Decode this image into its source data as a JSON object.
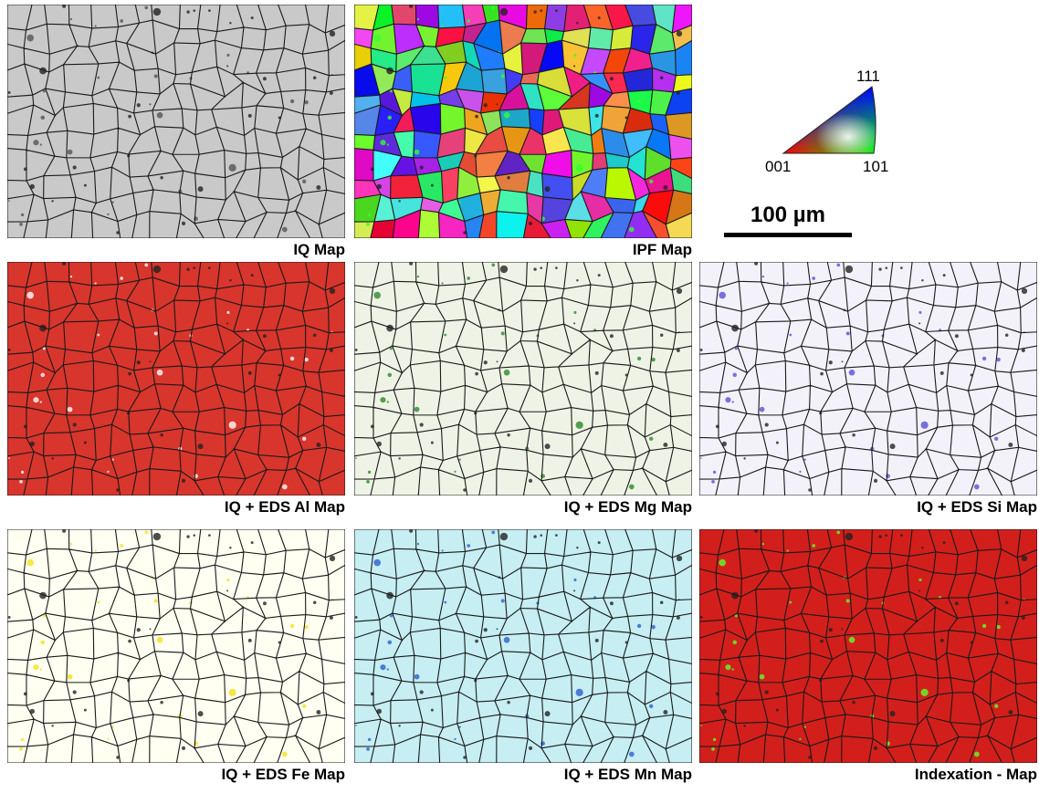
{
  "panels": [
    {
      "label": "IQ Map"
    },
    {
      "label": "IPF Map"
    },
    {
      "label": "IQ + EDS Al Map"
    },
    {
      "label": "IQ + EDS Mg Map"
    },
    {
      "label": "IQ + EDS Si Map"
    },
    {
      "label": "IQ + EDS Fe Map"
    },
    {
      "label": "IQ + EDS Mn Map"
    },
    {
      "label": "Indexation - Map"
    }
  ],
  "legend": {
    "top": "111",
    "left": "001",
    "right": "101"
  },
  "scale_bar": {
    "label": "100 µm"
  }
}
